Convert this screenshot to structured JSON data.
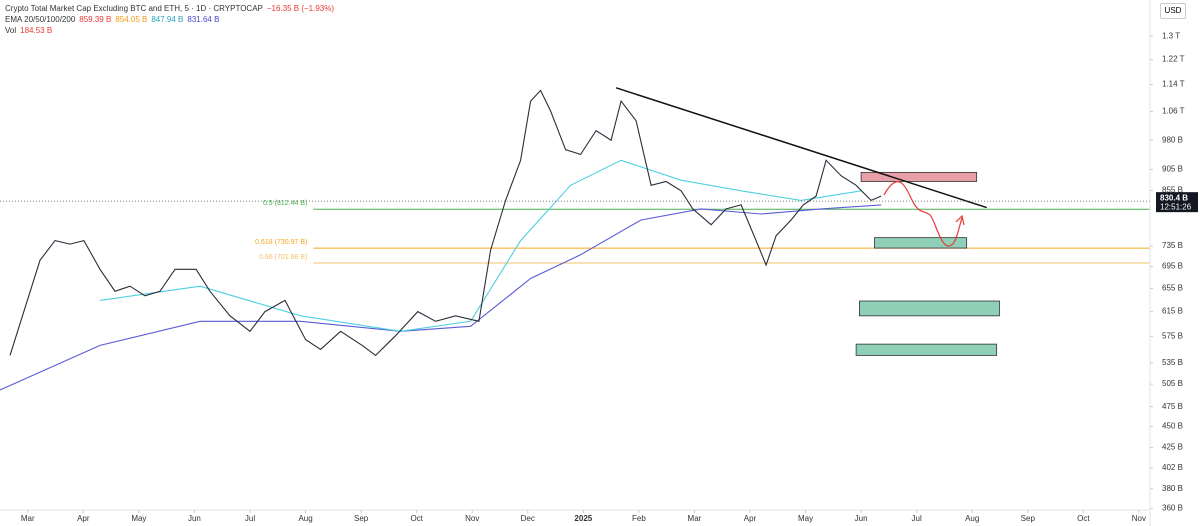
{
  "header": {
    "symbol": "Crypto Total Market Cap Excluding BTC and ETH, 5 · 1D · CRYPTOCAP",
    "change": "−16.35 B (−1.93%)",
    "ema_label": "EMA 20/50/100/200",
    "ema_values": [
      "859.39 B",
      "854.05 B",
      "847.94 B",
      "831.64 B"
    ],
    "vol_label": "Vol",
    "vol_value": "184.53 B",
    "currency": "USD",
    "countdown": "12:51:26"
  },
  "chart_data": {
    "type": "line",
    "log_scale": true,
    "xlim": [
      -0.5,
      20.2
    ],
    "ylim": [
      350,
      1400
    ],
    "xticks": [
      {
        "value": 0,
        "label": "Mar"
      },
      {
        "value": 1,
        "label": "Apr"
      },
      {
        "value": 2,
        "label": "May"
      },
      {
        "value": 3,
        "label": "Jun"
      },
      {
        "value": 4,
        "label": "Jul"
      },
      {
        "value": 5,
        "label": "Aug"
      },
      {
        "value": 6,
        "label": "Sep"
      },
      {
        "value": 7,
        "label": "Oct"
      },
      {
        "value": 8,
        "label": "Nov"
      },
      {
        "value": 9,
        "label": "Dec"
      },
      {
        "value": 10,
        "label": "2025"
      },
      {
        "value": 11,
        "label": "Feb"
      },
      {
        "value": 12,
        "label": "Mar"
      },
      {
        "value": 13,
        "label": "Apr"
      },
      {
        "value": 14,
        "label": "May"
      },
      {
        "value": 15,
        "label": "Jun"
      },
      {
        "value": 16,
        "label": "Jul"
      },
      {
        "value": 17,
        "label": "Aug"
      },
      {
        "value": 18,
        "label": "Sep"
      },
      {
        "value": 19,
        "label": "Oct"
      },
      {
        "value": 20,
        "label": "Nov"
      }
    ],
    "yticks": [
      {
        "value": 1300,
        "label": "1.3 T"
      },
      {
        "value": 1220,
        "label": "1.22 T"
      },
      {
        "value": 1140,
        "label": "1.14 T"
      },
      {
        "value": 1060,
        "label": "1.06 T"
      },
      {
        "value": 980,
        "label": "980 B"
      },
      {
        "value": 905,
        "label": "905 B"
      },
      {
        "value": 855,
        "label": "855 B"
      },
      {
        "value": 735,
        "label": "735 B"
      },
      {
        "value": 695,
        "label": "695 B"
      },
      {
        "value": 655,
        "label": "655 B"
      },
      {
        "value": 615,
        "label": "615 B"
      },
      {
        "value": 575,
        "label": "575 B"
      },
      {
        "value": 535,
        "label": "535 B"
      },
      {
        "value": 505,
        "label": "505 B"
      },
      {
        "value": 475,
        "label": "475 B"
      },
      {
        "value": 450,
        "label": "450 B"
      },
      {
        "value": 425,
        "label": "425 B"
      },
      {
        "value": 402,
        "label": "402 B"
      },
      {
        "value": 380,
        "label": "380 B"
      },
      {
        "value": 360,
        "label": "360 B"
      }
    ],
    "series": [
      {
        "color": "#5b5bd6",
        "x": [
          -0.5,
          1.3,
          3.1,
          4.91,
          6.71,
          7.97,
          9.05,
          9.95,
          11.04,
          12.12,
          13.2,
          14.28,
          15.36
        ],
        "values": [
          497,
          561,
          599,
          599,
          583,
          591,
          673,
          718,
          789,
          813,
          802,
          813,
          822
        ]
      },
      {
        "color": "#4dd0e1",
        "x": [
          1.3,
          3.1,
          4.91,
          6.71,
          7.97,
          8.87,
          9.77,
          10.68,
          11.76,
          12.84,
          13.92,
          15.0
        ],
        "values": [
          634,
          659,
          608,
          583,
          599,
          746,
          867,
          928,
          879,
          854,
          832,
          854
        ]
      },
      {
        "color": "#2a2e39",
        "x": [
          -0.32,
          0.22,
          0.49,
          0.76,
          1.01,
          1.3,
          1.57,
          1.84,
          2.11,
          2.38,
          2.65,
          3.03,
          3.28,
          3.64,
          4.0,
          4.27,
          4.63,
          5.0,
          5.27,
          5.63,
          6.02,
          6.26,
          6.62,
          7.02,
          7.34,
          7.7,
          8.12,
          8.33,
          8.6,
          8.87,
          9.05,
          9.23,
          9.41,
          9.68,
          9.95,
          10.23,
          10.5,
          10.68,
          10.95,
          11.22,
          11.49,
          11.76,
          11.97,
          12.3,
          12.57,
          12.84,
          13.11,
          13.29,
          13.47,
          13.74,
          13.96,
          14.19,
          14.37,
          14.64,
          14.91,
          15.18,
          15.36
        ],
        "values": [
          546,
          707,
          746,
          739,
          746,
          690,
          650,
          659,
          642,
          650,
          690,
          690,
          650,
          608,
          583,
          615,
          634,
          570,
          555,
          583,
          561,
          546,
          576,
          615,
          599,
          608,
          599,
          727,
          832,
          928,
          1090,
          1122,
          1061,
          955,
          943,
          1006,
          980,
          1090,
          1033,
          867,
          876,
          854,
          813,
          779,
          813,
          822,
          746,
          698,
          756,
          789,
          822,
          842,
          928,
          890,
          867,
          832,
          842
        ]
      }
    ],
    "fib_levels": [
      {
        "value": 812.44,
        "label": "0.5 (812.44 B)",
        "color": "#4caf50"
      },
      {
        "value": 730.97,
        "label": "0.618 (730.97 B)",
        "color": "#f5a623"
      },
      {
        "value": 701.98,
        "label": "0.66 (701.98 B)",
        "color": "#f5c26b"
      }
    ],
    "trendline": {
      "x": [
        10.59,
        17.26
      ],
      "values": [
        1130,
        816
      ],
      "color": "#111111"
    },
    "zones": [
      {
        "x0": 15.0,
        "x1": 17.08,
        "low": 876,
        "high": 898,
        "color": "#e8a0a8"
      },
      {
        "x0": 15.24,
        "x1": 16.9,
        "low": 731,
        "high": 752,
        "color": "#8fcfb8"
      },
      {
        "x0": 14.97,
        "x1": 17.49,
        "low": 608,
        "high": 633,
        "color": "#8fcfb8"
      },
      {
        "x0": 14.91,
        "x1": 17.44,
        "low": 546,
        "high": 563,
        "color": "#8fcfb8"
      }
    ],
    "last_price": {
      "value": 830.4,
      "label": "830.4 B"
    }
  }
}
